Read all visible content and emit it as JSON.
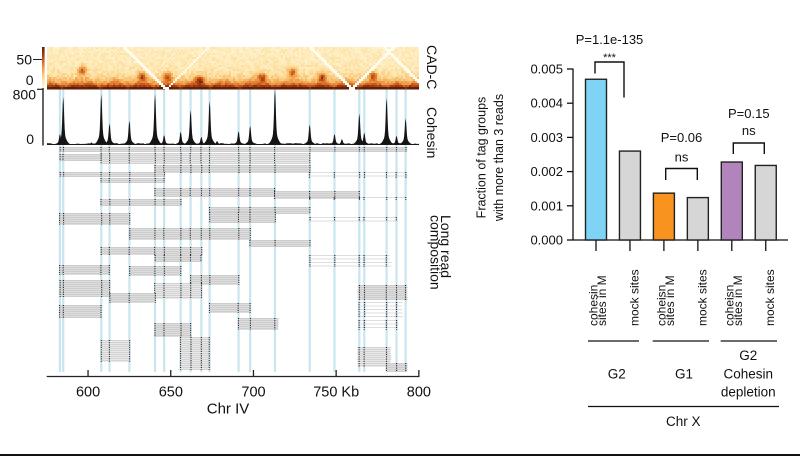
{
  "chart_data": [
    {
      "type": "heatmap",
      "name": "Hi-C contact map",
      "track_label": "CAD-C",
      "x_range_kb": [
        575,
        800
      ],
      "colorbar_ticks": [
        "50",
        "0"
      ],
      "colormap": [
        "#fff8df",
        "#fde4a9",
        "#f6b45f",
        "#e0792c",
        "#a83c12",
        "#5e1f08"
      ],
      "domain_boundaries_kb": [
        585,
        608,
        625,
        640.5,
        656,
        673.5,
        691,
        713,
        734,
        749,
        764,
        780.5,
        792
      ],
      "loops_kb": [
        [
          585,
          608
        ],
        [
          625,
          640.5
        ],
        [
          640.5,
          656
        ],
        [
          662,
          673.5
        ],
        [
          698,
          713
        ],
        [
          713,
          734
        ],
        [
          734,
          749
        ],
        [
          764,
          780.5
        ]
      ],
      "missing_bins_kb": [
        647.5,
        759.5,
        805
      ]
    },
    {
      "type": "area",
      "name": "Cohesin ChIP-seq",
      "track_label": "Cohesin",
      "ylim": [
        0,
        800
      ],
      "ytick_labels": [
        "800",
        "0"
      ],
      "peaks": [
        {
          "kb": 583,
          "value": 150
        },
        {
          "kb": 585,
          "value": 690
        },
        {
          "kb": 602,
          "value": 30
        },
        {
          "kb": 608,
          "value": 730
        },
        {
          "kb": 613,
          "value": 305
        },
        {
          "kb": 625,
          "value": 345
        },
        {
          "kb": 640.5,
          "value": 730
        },
        {
          "kb": 646,
          "value": 136
        },
        {
          "kb": 656,
          "value": 184
        },
        {
          "kb": 662,
          "value": 500
        },
        {
          "kb": 668.5,
          "value": 111
        },
        {
          "kb": 673.5,
          "value": 630
        },
        {
          "kb": 678,
          "value": 50
        },
        {
          "kb": 691,
          "value": 194
        },
        {
          "kb": 698,
          "value": 271
        },
        {
          "kb": 713,
          "value": 800
        },
        {
          "kb": 734,
          "value": 290
        },
        {
          "kb": 749,
          "value": 150
        },
        {
          "kb": 753.5,
          "value": 78
        },
        {
          "kb": 764,
          "value": 450
        },
        {
          "kb": 767,
          "value": 170
        },
        {
          "kb": 780.5,
          "value": 674
        },
        {
          "kb": 786.5,
          "value": 126
        },
        {
          "kb": 792,
          "value": 378
        }
      ]
    },
    {
      "type": "line",
      "name": "Long read composition",
      "track_label_lines": [
        "Long read",
        "composition"
      ],
      "xlabel": "Chr IV",
      "x_range_kb": [
        575,
        800
      ],
      "xticks_kb": [
        600,
        650,
        700,
        750,
        800
      ],
      "xtick_labels": [
        "600",
        "650",
        "700",
        "750 Kb",
        "800"
      ],
      "cohesin_sites_kb": [
        583,
        585,
        608,
        613,
        625,
        640.5,
        646,
        656,
        662,
        668.5,
        673.5,
        691,
        698,
        713,
        734,
        749,
        764,
        767,
        780.5,
        786.5,
        792
      ],
      "read_groups": [
        {
          "start_kb": 583,
          "end_kb": 793,
          "first_read": 0,
          "n_reads": 5,
          "density": "dense"
        },
        {
          "start_kb": 583,
          "end_kb": 655,
          "first_read": 7,
          "n_reads": 7,
          "density": "dense"
        },
        {
          "start_kb": 608,
          "end_kb": 734,
          "first_read": 6,
          "n_reads": 11,
          "density": "medium"
        },
        {
          "start_kb": 640.5,
          "end_kb": 734,
          "first_read": 18,
          "n_reads": 8,
          "density": "dense"
        },
        {
          "start_kb": 583,
          "end_kb": 646,
          "first_read": 25,
          "n_reads": 5,
          "density": "dense"
        },
        {
          "start_kb": 734,
          "end_kb": 793,
          "first_read": 25,
          "n_reads": 6,
          "density": "sparse"
        },
        {
          "start_kb": 608,
          "end_kb": 646,
          "first_read": 31,
          "n_reads": 5,
          "density": "dense"
        },
        {
          "start_kb": 640.5,
          "end_kb": 713,
          "first_read": 41,
          "n_reads": 9,
          "density": "dense"
        },
        {
          "start_kb": 713,
          "end_kb": 764,
          "first_read": 44,
          "n_reads": 8,
          "density": "dense"
        },
        {
          "start_kb": 608,
          "end_kb": 656,
          "first_read": 52,
          "n_reads": 7,
          "density": "dense"
        },
        {
          "start_kb": 734,
          "end_kb": 792,
          "first_read": 50,
          "n_reads": 3,
          "density": "sparse"
        },
        {
          "start_kb": 673.5,
          "end_kb": 734,
          "first_read": 60,
          "n_reads": 7,
          "density": "dense"
        },
        {
          "start_kb": 583,
          "end_kb": 625,
          "first_read": 66,
          "n_reads": 12,
          "density": "dense"
        },
        {
          "start_kb": 673.5,
          "end_kb": 713,
          "first_read": 65,
          "n_reads": 11,
          "density": "dense"
        },
        {
          "start_kb": 734,
          "end_kb": 786.5,
          "first_read": 70,
          "n_reads": 4,
          "density": "sparse"
        },
        {
          "start_kb": 625,
          "end_kb": 698,
          "first_read": 81,
          "n_reads": 12,
          "density": "dense"
        },
        {
          "start_kb": 698,
          "end_kb": 734,
          "first_read": 93,
          "n_reads": 7,
          "density": "dense"
        },
        {
          "start_kb": 608,
          "end_kb": 668.5,
          "first_read": 100,
          "n_reads": 8,
          "density": "dense"
        },
        {
          "start_kb": 640.5,
          "end_kb": 668.5,
          "first_read": 108,
          "n_reads": 7,
          "density": "dense"
        },
        {
          "start_kb": 734,
          "end_kb": 783,
          "first_read": 108,
          "n_reads": 12,
          "density": "sparse"
        },
        {
          "start_kb": 583,
          "end_kb": 613,
          "first_read": 118,
          "n_reads": 10,
          "density": "dense"
        },
        {
          "start_kb": 625,
          "end_kb": 656,
          "first_read": 119,
          "n_reads": 10,
          "density": "dense"
        },
        {
          "start_kb": 662,
          "end_kb": 691,
          "first_read": 128,
          "n_reads": 10,
          "density": "dense"
        },
        {
          "start_kb": 583,
          "end_kb": 613,
          "first_read": 133,
          "n_reads": 17,
          "density": "dense"
        },
        {
          "start_kb": 640.5,
          "end_kb": 668.5,
          "first_read": 136,
          "n_reads": 16,
          "density": "medium"
        },
        {
          "start_kb": 763,
          "end_kb": 793,
          "first_read": 138,
          "n_reads": 15,
          "density": "dense"
        },
        {
          "start_kb": 613,
          "end_kb": 640.5,
          "first_read": 146,
          "n_reads": 10,
          "density": "dense"
        },
        {
          "start_kb": 673.5,
          "end_kb": 698,
          "first_read": 156,
          "n_reads": 10,
          "density": "dense"
        },
        {
          "start_kb": 583,
          "end_kb": 608,
          "first_read": 158,
          "n_reads": 13,
          "density": "dense"
        },
        {
          "start_kb": 764,
          "end_kb": 790,
          "first_read": 155,
          "n_reads": 16,
          "density": "sparse"
        },
        {
          "start_kb": 691,
          "end_kb": 715,
          "first_read": 171,
          "n_reads": 12,
          "density": "dense"
        },
        {
          "start_kb": 640.5,
          "end_kb": 662,
          "first_read": 176,
          "n_reads": 14,
          "density": "dense"
        },
        {
          "start_kb": 763,
          "end_kb": 786.5,
          "first_read": 173,
          "n_reads": 10,
          "density": "sparse"
        },
        {
          "start_kb": 608,
          "end_kb": 625,
          "first_read": 193,
          "n_reads": 22,
          "density": "medium"
        },
        {
          "start_kb": 656,
          "end_kb": 673.5,
          "first_read": 190,
          "n_reads": 33,
          "density": "medium"
        },
        {
          "start_kb": 763,
          "end_kb": 783,
          "first_read": 200,
          "n_reads": 20,
          "density": "medium"
        },
        {
          "start_kb": 780.5,
          "end_kb": 793,
          "first_read": 216,
          "n_reads": 9,
          "density": "dense"
        }
      ]
    },
    {
      "type": "bar",
      "name": "Fraction of tag groups with more than 3 reads",
      "categories": [
        [
          "cohesin",
          "sites in M"
        ],
        [
          "mock sites"
        ],
        [
          "coheisn",
          "sites in M"
        ],
        [
          "mock sites"
        ],
        [
          "coheisn",
          "sites in M"
        ],
        [
          "mock sites"
        ]
      ],
      "values": [
        0.0047,
        0.0026,
        0.00137,
        0.00124,
        0.00228,
        0.00218
      ],
      "colors": [
        "#7fd3f5",
        "#d6d6d6",
        "#f7931e",
        "#d6d6d6",
        "#b185bc",
        "#d6d6d6"
      ],
      "ylabel_lines": [
        "Fraction of tag groups",
        "with more than 3 reads"
      ],
      "ylim": [
        0,
        0.005
      ],
      "yticks": [
        0,
        0.001,
        0.002,
        0.003,
        0.004,
        0.005
      ],
      "ytick_labels": [
        "0.000",
        "0.001",
        "0.002",
        "0.003",
        "0.004",
        "0.005"
      ],
      "comparisons": [
        {
          "bars": [
            0,
            1
          ],
          "significance": "***",
          "p_value": "P=1.1e-135"
        },
        {
          "bars": [
            2,
            3
          ],
          "significance": "ns",
          "p_value": "P=0.06"
        },
        {
          "bars": [
            4,
            5
          ],
          "significance": "ns",
          "p_value": "P=0.15"
        }
      ],
      "groups": [
        {
          "label_lines": [
            "G2"
          ],
          "color": "#29abe2",
          "bars": [
            0,
            1
          ]
        },
        {
          "label_lines": [
            "G1"
          ],
          "color": "#f26a2b",
          "bars": [
            2,
            3
          ]
        },
        {
          "label_lines": [
            "G2",
            "Cohesin",
            "depletion"
          ],
          "color": "#93579f",
          "bars": [
            4,
            5
          ]
        }
      ],
      "xlabel": "Chr X",
      "legend": "none"
    }
  ]
}
